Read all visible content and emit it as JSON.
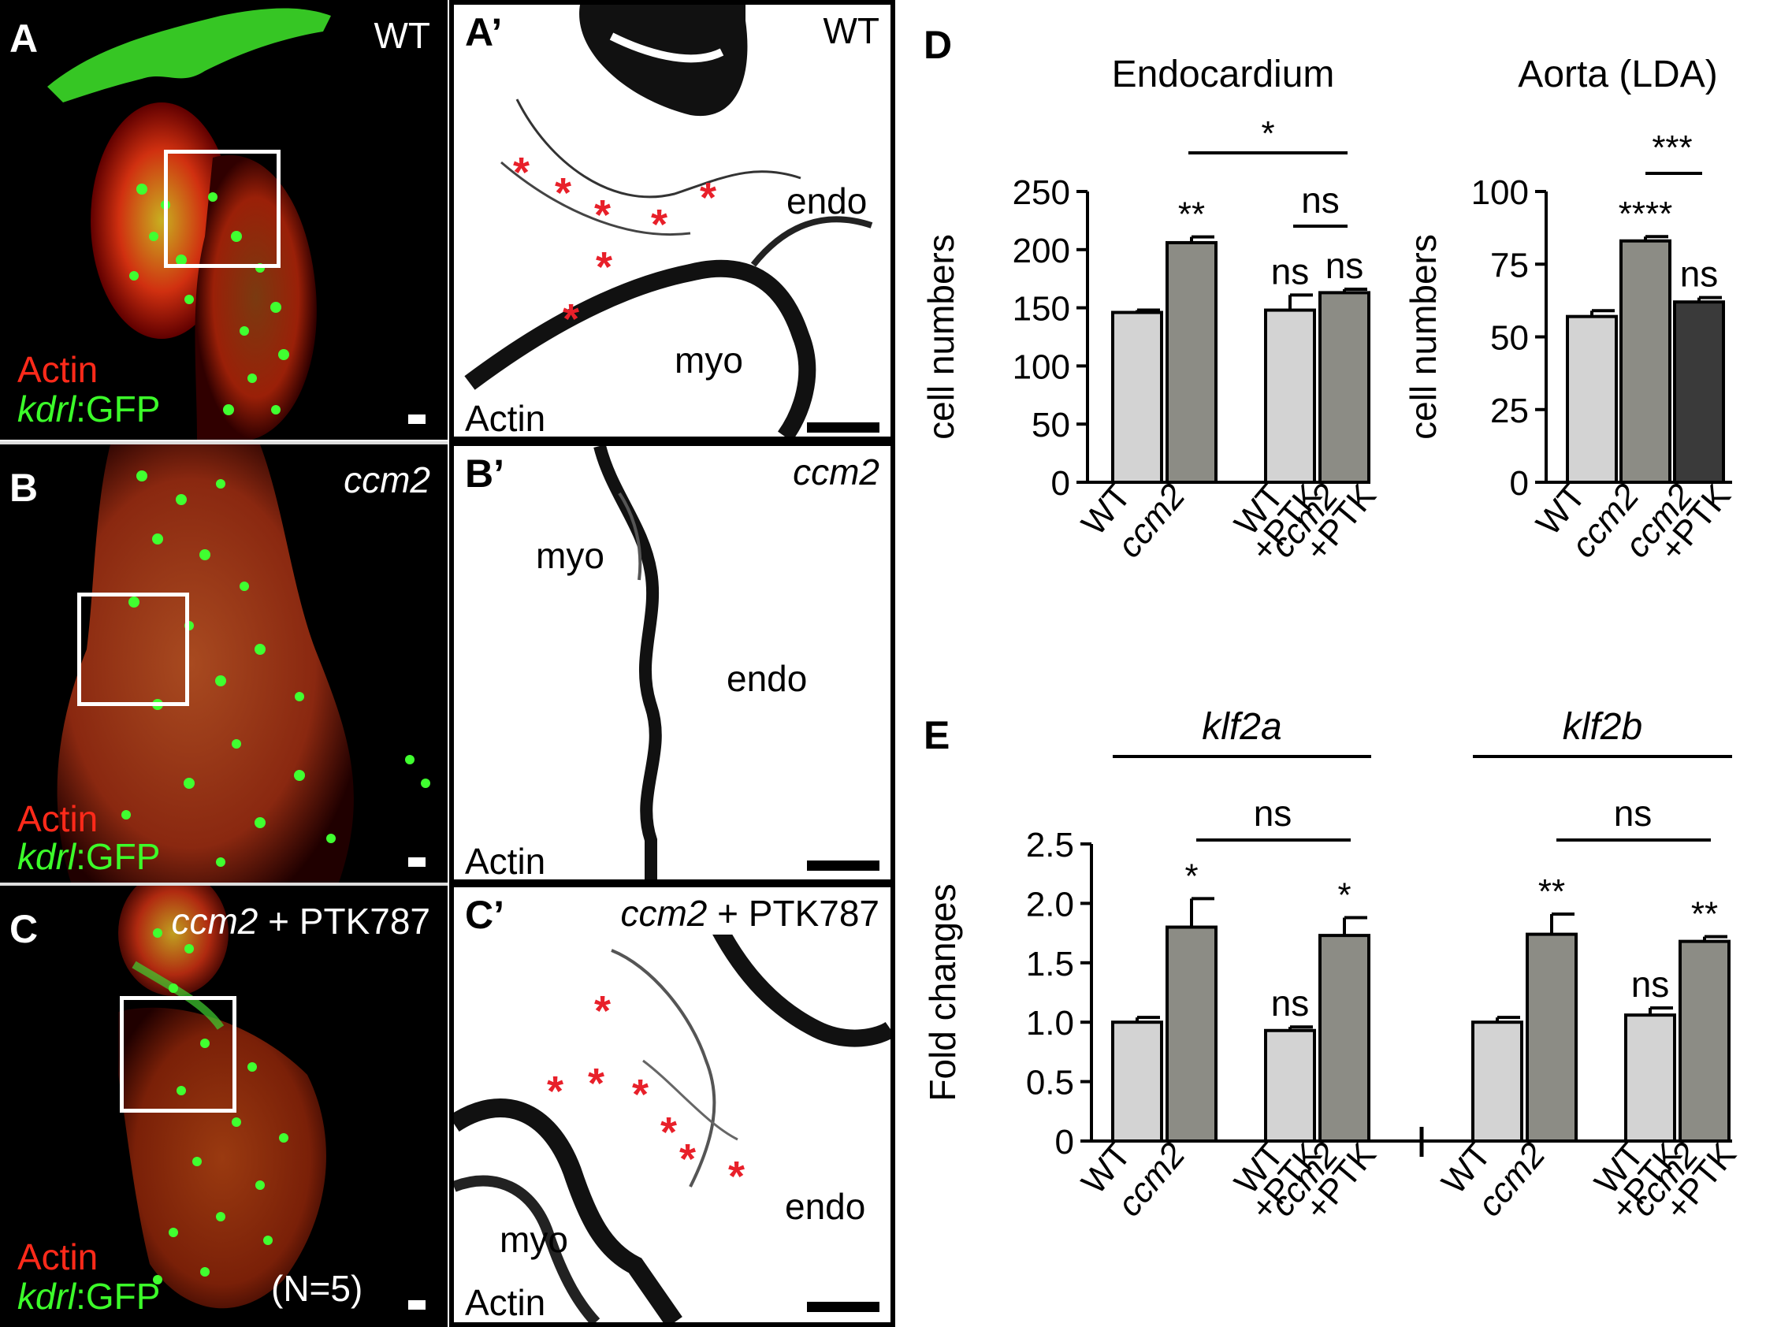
{
  "panels": {
    "A": {
      "label": "A",
      "condition": "WT",
      "legend_actin": "Actin",
      "legend_gene": "kdrl",
      "legend_suffix": ":GFP"
    },
    "A2": {
      "label": "A’",
      "condition": "WT",
      "endo": "endo",
      "myo": "myo",
      "actin": "Actin"
    },
    "B": {
      "label": "B",
      "condition": "ccm2",
      "legend_actin": "Actin",
      "legend_gene": "kdrl",
      "legend_suffix": ":GFP"
    },
    "B2": {
      "label": "B’",
      "condition": "ccm2",
      "endo": "endo",
      "myo": "myo",
      "actin": "Actin"
    },
    "C": {
      "label": "C",
      "condition_gene": "ccm2",
      "condition_drug": " + PTK787",
      "legend_actin": "Actin",
      "legend_gene": "kdrl",
      "legend_suffix": ":GFP",
      "n_note": "(N=5)"
    },
    "C2": {
      "label": "C’",
      "condition_gene": "ccm2",
      "condition_drug": " + PTK787",
      "endo": "endo",
      "myo": "myo",
      "actin": "Actin"
    },
    "D": {
      "label": "D"
    },
    "E": {
      "label": "E"
    }
  },
  "asterisk": "*",
  "colors": {
    "light_bar": "#d3d3d3",
    "mid_bar": "#8c8c85",
    "dark_bar": "#3a3a3a",
    "actin_red": "#ff2a1a",
    "gfp_green": "#3cff2a",
    "star_red": "#e8202a"
  },
  "chart_data": [
    {
      "type": "bar",
      "panel": "D",
      "title": "Endocardium",
      "ylabel": "cell numbers",
      "ylim": [
        0,
        250
      ],
      "yticks": [
        0,
        50,
        100,
        150,
        200,
        250
      ],
      "categories": [
        [
          "WT",
          ""
        ],
        [
          "ccm2",
          ""
        ],
        [
          "WT",
          "+PTK"
        ],
        [
          "ccm2",
          "+PTK"
        ]
      ],
      "values": [
        146,
        206,
        148,
        163
      ],
      "errors": [
        2,
        5,
        13,
        3
      ],
      "colors": [
        "#d3d3d3",
        "#8c8c85",
        "#d3d3d3",
        "#8c8c85"
      ],
      "bar_annotations": [
        "",
        "**",
        "ns",
        "ns"
      ],
      "brackets": [
        {
          "from": 1,
          "to": 3,
          "label": "*"
        },
        {
          "from": 2,
          "to": 3,
          "label": "ns"
        }
      ]
    },
    {
      "type": "bar",
      "panel": "D",
      "title": "Aorta (LDA)",
      "ylabel": "cell numbers",
      "ylim": [
        0,
        100
      ],
      "yticks": [
        0,
        25,
        50,
        75,
        100
      ],
      "categories": [
        [
          "WT",
          ""
        ],
        [
          "ccm2",
          ""
        ],
        [
          "ccm2",
          "+PTK"
        ]
      ],
      "values": [
        57,
        83,
        62
      ],
      "errors": [
        2,
        1.5,
        1.5
      ],
      "colors": [
        "#d3d3d3",
        "#8c8c85",
        "#3a3a3a"
      ],
      "bar_annotations": [
        "",
        "****",
        "ns"
      ],
      "brackets": [
        {
          "from": 1,
          "to": 2,
          "label": "***"
        }
      ]
    },
    {
      "type": "bar",
      "panel": "E",
      "ylabel": "Fold changes",
      "ylim": [
        0,
        2.5
      ],
      "yticks": [
        "0",
        "0.5",
        "1.0",
        "1.5",
        "2.0",
        "2.5"
      ],
      "groups": [
        {
          "name": "klf2a",
          "categories": [
            [
              "WT",
              ""
            ],
            [
              "ccm2",
              ""
            ],
            [
              "WT",
              "+PTK"
            ],
            [
              "ccm2",
              "+PTK"
            ]
          ],
          "values": [
            1.0,
            1.8,
            0.93,
            1.73
          ],
          "errors": [
            0.04,
            0.24,
            0.03,
            0.15
          ],
          "colors": [
            "#d3d3d3",
            "#8c8c85",
            "#d3d3d3",
            "#8c8c85"
          ],
          "bar_annotations": [
            "",
            "*",
            "ns",
            "*"
          ],
          "bracket": {
            "from": 1,
            "to": 3,
            "label": "ns"
          }
        },
        {
          "name": "klf2b",
          "categories": [
            [
              "WT",
              ""
            ],
            [
              "ccm2",
              ""
            ],
            [
              "WT",
              "+PTK"
            ],
            [
              "ccm2",
              "+PTK"
            ]
          ],
          "values": [
            1.0,
            1.74,
            1.06,
            1.68
          ],
          "errors": [
            0.04,
            0.17,
            0.06,
            0.04
          ],
          "colors": [
            "#d3d3d3",
            "#8c8c85",
            "#d3d3d3",
            "#8c8c85"
          ],
          "bar_annotations": [
            "",
            "**",
            "ns",
            "**"
          ],
          "bracket": {
            "from": 1,
            "to": 3,
            "label": "ns"
          }
        }
      ]
    }
  ]
}
